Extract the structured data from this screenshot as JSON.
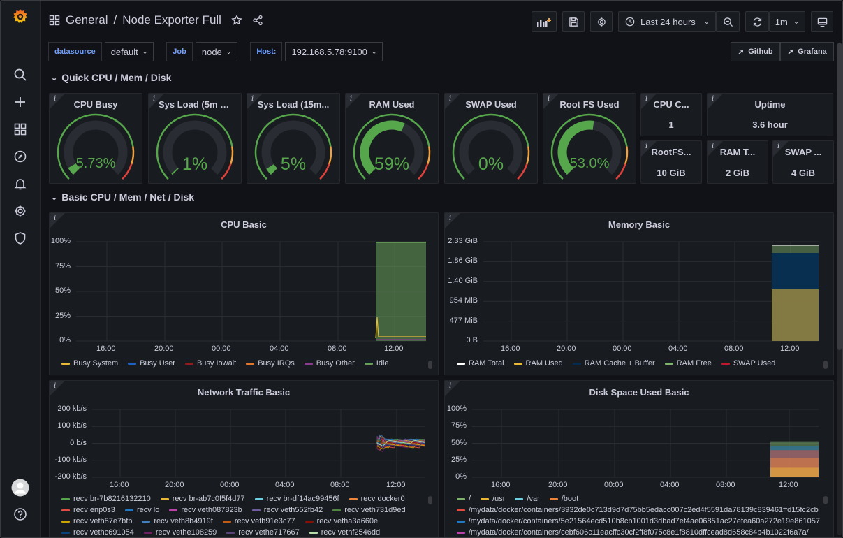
{
  "breadcrumb": {
    "folder": "General",
    "separator": "/",
    "dashboard": "Node Exporter Full"
  },
  "toolbar": {
    "time_range": "Last 24 hours",
    "refresh_interval": "1m"
  },
  "variables": [
    {
      "label": "datasource",
      "value": "default"
    },
    {
      "label": "Job",
      "value": "node"
    },
    {
      "label": "Host:",
      "value": "192.168.5.78:9100"
    }
  ],
  "links": {
    "github": "Github",
    "grafana": "Grafana"
  },
  "rows": {
    "quick": "Quick CPU / Mem / Disk",
    "basic": "Basic CPU / Mem / Net / Disk"
  },
  "gauges": [
    {
      "title": "CPU Busy",
      "value": "5.73%",
      "fraction": 0.0573
    },
    {
      "title": "Sys Load (5m a...",
      "value": "1%",
      "fraction": 0.01
    },
    {
      "title": "Sys Load (15m...",
      "value": "5%",
      "fraction": 0.05
    },
    {
      "title": "RAM Used",
      "value": "59%",
      "fraction": 0.59
    },
    {
      "title": "SWAP Used",
      "value": "0%",
      "fraction": 0.0
    },
    {
      "title": "Root FS Used",
      "value": "53.0%",
      "fraction": 0.53
    }
  ],
  "stats": [
    {
      "title": "CPU C...",
      "value": "1"
    },
    {
      "title": "Uptime",
      "value": "3.6 hour"
    },
    {
      "title": "RootFS...",
      "value": "10 GiB"
    },
    {
      "title": "RAM T...",
      "value": "2 GiB"
    },
    {
      "title": "SWAP ...",
      "value": "4 GiB"
    }
  ],
  "colors": {
    "green": "#56a64b",
    "orange": "#f2a23c",
    "red": "#e0413b",
    "yellow": "#f2cc0c",
    "blue": "#1f60c4"
  },
  "chart_data": [
    {
      "type": "area",
      "title": "CPU Basic",
      "ytick_labels": [
        "100%",
        "75%",
        "50%",
        "25%",
        "0%"
      ],
      "xtick_labels": [
        "16:00",
        "20:00",
        "00:00",
        "04:00",
        "08:00",
        "12:00"
      ],
      "series": [
        {
          "name": "Busy System",
          "color": "#eab839"
        },
        {
          "name": "Busy User",
          "color": "#1f60c4"
        },
        {
          "name": "Busy Iowait",
          "color": "#8f1d1d"
        },
        {
          "name": "Busy IRQs",
          "color": "#e0752d"
        },
        {
          "name": "Busy Other",
          "color": "#8c3c8c"
        },
        {
          "name": "Idle",
          "color": "#6a9f5a"
        }
      ]
    },
    {
      "type": "area",
      "title": "Memory Basic",
      "ytick_labels": [
        "2.33 GiB",
        "1.86 GiB",
        "1.40 GiB",
        "954 MiB",
        "477 MiB",
        "0 B"
      ],
      "xtick_labels": [
        "16:00",
        "20:00",
        "00:00",
        "04:00",
        "08:00",
        "12:00"
      ],
      "series": [
        {
          "name": "RAM Total",
          "color": "#ffffff"
        },
        {
          "name": "RAM Used",
          "color": "#eab839"
        },
        {
          "name": "RAM Cache + Buffer",
          "color": "#052b51"
        },
        {
          "name": "RAM Free",
          "color": "#7eb26d"
        },
        {
          "name": "SWAP Used",
          "color": "#c4162a"
        }
      ]
    },
    {
      "type": "line",
      "title": "Network Traffic Basic",
      "ytick_labels": [
        "200 kb/s",
        "100 kb/s",
        "0 b/s",
        "-100 kb/s",
        "-200 kb/s"
      ],
      "xtick_labels": [
        "16:00",
        "20:00",
        "00:00",
        "04:00",
        "08:00",
        "12:00"
      ],
      "series": [
        {
          "name": "recv br-7b8216132210",
          "color": "#56a64b"
        },
        {
          "name": "recv br-ab7c0f5f4d77",
          "color": "#eab839"
        },
        {
          "name": "recv br-df14ac99456f",
          "color": "#6ed0e0"
        },
        {
          "name": "recv docker0",
          "color": "#ef843c"
        },
        {
          "name": "recv enp0s3",
          "color": "#e24d42"
        },
        {
          "name": "recv lo",
          "color": "#1f78c1"
        },
        {
          "name": "recv veth087823b",
          "color": "#ba43a9"
        },
        {
          "name": "recv veth552fb42",
          "color": "#705da0"
        },
        {
          "name": "recv veth731d9ed",
          "color": "#508642"
        },
        {
          "name": "recv veth87e7bfb",
          "color": "#cca300"
        },
        {
          "name": "recv veth8b4919f",
          "color": "#447ebc"
        },
        {
          "name": "recv veth91e3c77",
          "color": "#c15c17"
        },
        {
          "name": "recv vetha3a660e",
          "color": "#890f02"
        },
        {
          "name": "recv vethc691054",
          "color": "#0a437c"
        },
        {
          "name": "recv vethe108259",
          "color": "#6d1f62"
        },
        {
          "name": "recv vethe717667",
          "color": "#584477"
        },
        {
          "name": "recv vethf2546dd",
          "color": "#b7dbab"
        }
      ]
    },
    {
      "type": "area",
      "title": "Disk Space Used Basic",
      "ytick_labels": [
        "100%",
        "75%",
        "50%",
        "25%",
        "0%"
      ],
      "xtick_labels": [
        "16:00",
        "20:00",
        "00:00",
        "04:00",
        "08:00",
        "12:00"
      ],
      "series": [
        {
          "name": "/",
          "color": "#7eb26d"
        },
        {
          "name": "/usr",
          "color": "#eab839"
        },
        {
          "name": "/var",
          "color": "#6ed0e0"
        },
        {
          "name": "/boot",
          "color": "#ef843c"
        },
        {
          "name": "/mydata/docker/containers/3932de0c713d9d7d75bb5edacc007c2ed4f5591da78139c839461ffd15fc2cb",
          "color": "#e24d42"
        },
        {
          "name": "/mydata/docker/containers/5e21564ecd510b8cb1001d3dbad7ef4ae06851ac27efea60a272e19e861057",
          "color": "#1f78c1"
        },
        {
          "name": "/mydata/docker/containers/cebf606c11eacffc30cf2ff8f075c8e1f8810dffcead8d658c84b4b1022f6a7a/",
          "color": "#ba43a9"
        }
      ]
    }
  ]
}
